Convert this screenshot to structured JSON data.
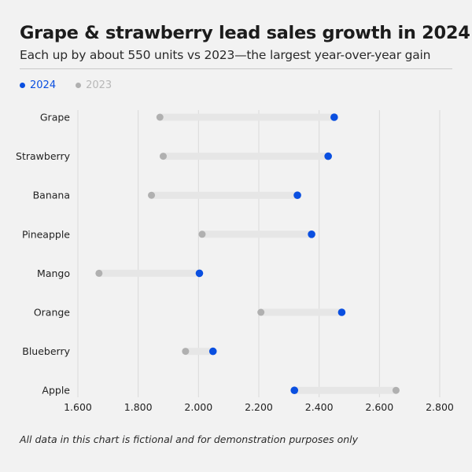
{
  "header": {
    "title": "Grape & strawberry lead sales growth in 2024",
    "subtitle": "Each up by about 550 units vs 2023—the largest year-over-year gain"
  },
  "legend": [
    {
      "label": "2024",
      "color": "#0a4fe0"
    },
    {
      "label": "2023",
      "color": "#b0b0b0"
    }
  ],
  "footnote": "All data in this chart is fictional and for demonstration purposes only",
  "chart_data": {
    "type": "dumbbell",
    "title": "Grape & strawberry lead sales growth in 2024",
    "subtitle": "Each up by about 550 units vs 2023—the largest year-over-year gain",
    "xlabel": "",
    "ylabel": "",
    "xlim": [
      1600,
      2800
    ],
    "x_ticks": [
      1600,
      1800,
      2000,
      2200,
      2400,
      2600,
      2800
    ],
    "x_tick_labels": [
      "1.600",
      "1.800",
      "2.000",
      "2.200",
      "2.400",
      "2.600",
      "2.800"
    ],
    "grid": "vertical",
    "legend_position": "top-left",
    "categories": [
      "Grape",
      "Strawberry",
      "Banana",
      "Pineapple",
      "Mango",
      "Orange",
      "Blueberry",
      "Apple"
    ],
    "series": [
      {
        "name": "2024",
        "color": "#0a4fe0",
        "values": [
          2450,
          2430,
          2328,
          2375,
          2003,
          2475,
          2048,
          2318
        ]
      },
      {
        "name": "2023",
        "color": "#b0b0b0",
        "values": [
          1872,
          1883,
          1844,
          2012,
          1670,
          2207,
          1957,
          2655
        ]
      }
    ],
    "connector_color": "#e6e6e6"
  }
}
